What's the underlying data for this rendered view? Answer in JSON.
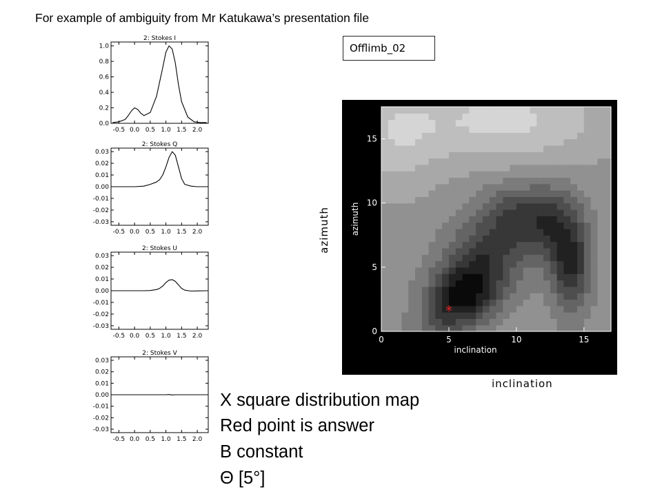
{
  "slide": {
    "title": "For example of ambiguity from Mr Katukawa’s presentation file",
    "tag": "Offlimb_02",
    "y_label_outer": "azimuth",
    "x_label_outer": "inclination",
    "lines": [
      "X square distribution map",
      "Red point is answer",
      "B constant",
      "Θ [5°]"
    ]
  },
  "chart_data": [
    {
      "type": "line",
      "title": "2: Stokes I",
      "x": [
        -0.7,
        -0.5,
        -0.3,
        -0.2,
        -0.1,
        0.0,
        0.1,
        0.2,
        0.3,
        0.5,
        0.7,
        0.9,
        1.0,
        1.1,
        1.2,
        1.3,
        1.4,
        1.5,
        1.7,
        1.9,
        2.1,
        2.3
      ],
      "y": [
        0.01,
        0.02,
        0.05,
        0.1,
        0.16,
        0.2,
        0.18,
        0.13,
        0.1,
        0.14,
        0.35,
        0.72,
        0.92,
        1.0,
        0.96,
        0.78,
        0.5,
        0.28,
        0.08,
        0.02,
        0.01,
        0.01
      ],
      "xlim": [
        -0.75,
        2.35
      ],
      "ylim": [
        0.0,
        1.05
      ],
      "xticks": [
        "-0.5",
        "0.0",
        "0.5",
        "1.0",
        "1.5",
        "2.0"
      ],
      "xtick_values": [
        -0.5,
        0,
        0.5,
        1,
        1.5,
        2
      ],
      "yticks": [
        "0.0",
        "0.2",
        "0.4",
        "0.6",
        "0.8",
        "1.0"
      ],
      "ytick_values": [
        0,
        0.2,
        0.4,
        0.6,
        0.8,
        1.0
      ]
    },
    {
      "type": "line",
      "title": "2: Stokes Q",
      "x": [
        -0.7,
        -0.3,
        0.0,
        0.3,
        0.5,
        0.7,
        0.8,
        0.9,
        1.0,
        1.1,
        1.2,
        1.3,
        1.4,
        1.5,
        1.6,
        1.8,
        2.0,
        2.3
      ],
      "y": [
        0.0,
        0.0,
        0.0,
        0.0005,
        0.002,
        0.004,
        0.006,
        0.01,
        0.017,
        0.025,
        0.03,
        0.027,
        0.017,
        0.007,
        0.002,
        0.0005,
        0.0,
        0.0
      ],
      "xlim": [
        -0.75,
        2.35
      ],
      "ylim": [
        -0.033,
        0.033
      ],
      "xticks": [
        "-0.5",
        "0.0",
        "0.5",
        "1.0",
        "1.5",
        "2.0"
      ],
      "xtick_values": [
        -0.5,
        0,
        0.5,
        1,
        1.5,
        2
      ],
      "yticks": [
        "0.03",
        "0.02",
        "0.01",
        "0.00",
        "-0.01",
        "-0.02",
        "-0.03"
      ],
      "ytick_values": [
        0.03,
        0.02,
        0.01,
        0,
        -0.01,
        -0.02,
        -0.03
      ]
    },
    {
      "type": "line",
      "title": "2: Stokes U",
      "x": [
        -0.7,
        -0.3,
        0.0,
        0.3,
        0.5,
        0.7,
        0.8,
        0.9,
        1.0,
        1.1,
        1.2,
        1.3,
        1.4,
        1.5,
        1.6,
        1.8,
        2.0,
        2.3
      ],
      "y": [
        0.0,
        0.0,
        0.0,
        0.0,
        0.0002,
        0.001,
        0.002,
        0.004,
        0.007,
        0.009,
        0.0095,
        0.008,
        0.005,
        0.002,
        0.0005,
        -0.0003,
        -0.0002,
        0.0
      ],
      "xlim": [
        -0.75,
        2.35
      ],
      "ylim": [
        -0.033,
        0.033
      ],
      "xticks": [
        "-0.5",
        "0.0",
        "0.5",
        "1.0",
        "1.5",
        "2.0"
      ],
      "xtick_values": [
        -0.5,
        0,
        0.5,
        1,
        1.5,
        2
      ],
      "yticks": [
        "0.03",
        "0.02",
        "0.01",
        "0.00",
        "-0.01",
        "-0.02",
        "-0.03"
      ],
      "ytick_values": [
        0.03,
        0.02,
        0.01,
        0,
        -0.01,
        -0.02,
        -0.03
      ]
    },
    {
      "type": "line",
      "title": "2: Stokes V",
      "x": [
        -0.7,
        0.0,
        1.0,
        1.1,
        1.2,
        1.3,
        2.3
      ],
      "y": [
        0.0,
        0.0,
        0.0,
        0.0002,
        -0.0002,
        0.0,
        0.0
      ],
      "xlim": [
        -0.75,
        2.35
      ],
      "ylim": [
        -0.033,
        0.033
      ],
      "xticks": [
        "-0.5",
        "0.0",
        "0.5",
        "1.0",
        "1.5",
        "2.0"
      ],
      "xtick_values": [
        -0.5,
        0,
        0.5,
        1,
        1.5,
        2
      ],
      "yticks": [
        "0.03",
        "0.02",
        "0.01",
        "0.00",
        "-0.01",
        "-0.02",
        "-0.03"
      ],
      "ytick_values": [
        0.03,
        0.02,
        0.01,
        0,
        -0.01,
        -0.02,
        -0.03
      ]
    },
    {
      "type": "heatmap",
      "xlabel": "inclination",
      "ylabel": "azimuth",
      "xlim": [
        0,
        17
      ],
      "ylim": [
        0,
        17.5
      ],
      "xticks": [
        "0",
        "5",
        "10",
        "15"
      ],
      "xtick_values": [
        0,
        5,
        10,
        15
      ],
      "yticks": [
        "0",
        "5",
        "10",
        "15"
      ],
      "ytick_values": [
        0,
        5,
        10,
        15
      ],
      "answer_point": {
        "x": 5,
        "y": 1.7,
        "color": "#e02020"
      },
      "field_description": "dark valley from ~(5,2) up to ~(14,8); bright region near top",
      "min_color": "#0a0a0a",
      "max_color": "#ebebeb"
    }
  ]
}
